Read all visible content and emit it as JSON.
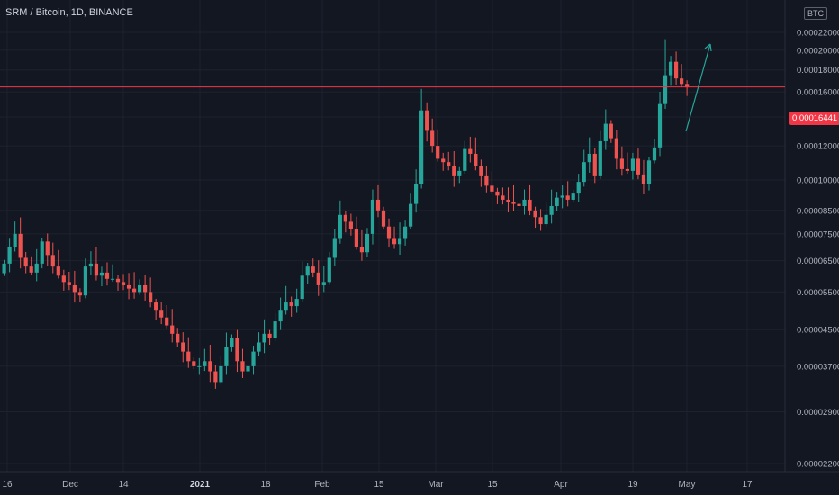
{
  "header": {
    "title": "SRM / Bitcoin, 1D, BINANCE"
  },
  "currency_label": "BTC",
  "last_price_label": "0.00016441",
  "colors": {
    "background": "#131722",
    "grid": "#1e222d",
    "up": "#26a69a",
    "down": "#ef5350",
    "price_line": "#f23645",
    "arrow": "#26a69a",
    "axis_text": "#b2b5be"
  },
  "chart_data": {
    "type": "candlestick",
    "title": "SRM / Bitcoin, 1D, BINANCE",
    "y_scale": "log",
    "ylim": [
      2.2e-06,
      0.00024
    ],
    "y_ticks": [
      "0.00022000",
      "0.00020000",
      "0.00018000",
      "0.00016000",
      "0.00014000",
      "0.00012000",
      "0.00010000",
      "0.00008500",
      "0.00007500",
      "0.00006500",
      "0.00005500",
      "0.00004500",
      "0.00003700",
      "0.00002900",
      "0.00002200"
    ],
    "x_tick_labels": [
      "16",
      "Dec",
      "14",
      "2021",
      "18",
      "Feb",
      "15",
      "Mar",
      "15",
      "Apr",
      "19",
      "May",
      "17"
    ],
    "last_price": 0.00016441,
    "closes": [
      6.4e-05,
      7e-05,
      7.5e-05,
      6.6e-05,
      6.3e-05,
      6.1e-05,
      6.4e-05,
      7.2e-05,
      6.7e-05,
      6.3e-05,
      6e-05,
      5.8e-05,
      5.7e-05,
      5.5e-05,
      5.4e-05,
      6.3e-05,
      6.4e-05,
      6e-05,
      6.1e-05,
      5.9e-05,
      5.9e-05,
      5.8e-05,
      5.7e-05,
      5.6e-05,
      5.5e-05,
      5.7e-05,
      5.5e-05,
      5.2e-05,
      5e-05,
      4.8e-05,
      4.6e-05,
      4.4e-05,
      4.2e-05,
      4e-05,
      3.8e-05,
      3.7e-05,
      3.7e-05,
      3.8e-05,
      3.6e-05,
      3.4e-05,
      3.7e-05,
      4.1e-05,
      4.3e-05,
      3.8e-05,
      3.6e-05,
      3.7e-05,
      4e-05,
      4.2e-05,
      4.4e-05,
      4.3e-05,
      4.7e-05,
      5e-05,
      5.2e-05,
      5.1e-05,
      5.3e-05,
      6e-05,
      6.3e-05,
      6.1e-05,
      5.7e-05,
      5.8e-05,
      6.6e-05,
      7.3e-05,
      8.3e-05,
      8e-05,
      7.7e-05,
      7e-05,
      6.8e-05,
      7.5e-05,
      9e-05,
      8.5e-05,
      7.8e-05,
      7.3e-05,
      7.1e-05,
      7.3e-05,
      7.8e-05,
      8.8e-05,
      9.8e-05,
      0.000145,
      0.00013,
      0.00012,
      0.000112,
      0.00011,
      0.000108,
      0.000102,
      0.000105,
      0.000118,
      0.000115,
      0.000108,
      0.000102,
      9.7e-05,
      9.4e-05,
      9.2e-05,
      9e-05,
      8.9e-05,
      8.8e-05,
      8.7e-05,
      9e-05,
      8.5e-05,
      8.2e-05,
      7.9e-05,
      8.3e-05,
      8.7e-05,
      9.1e-05,
      9.2e-05,
      9e-05,
      9.3e-05,
      9.9e-05,
      0.00011,
      0.000115,
      0.000102,
      0.000123,
      0.000135,
      0.000125,
      0.000112,
      0.000106,
      0.000105,
      0.000112,
      0.000103,
      9.8e-05,
      0.000111,
      0.000119,
      0.00015,
      0.000175,
      0.000188,
      0.000172,
      0.000167,
      0.000164
    ]
  },
  "annotation": {
    "type": "arrow",
    "color": "#26a69a"
  }
}
